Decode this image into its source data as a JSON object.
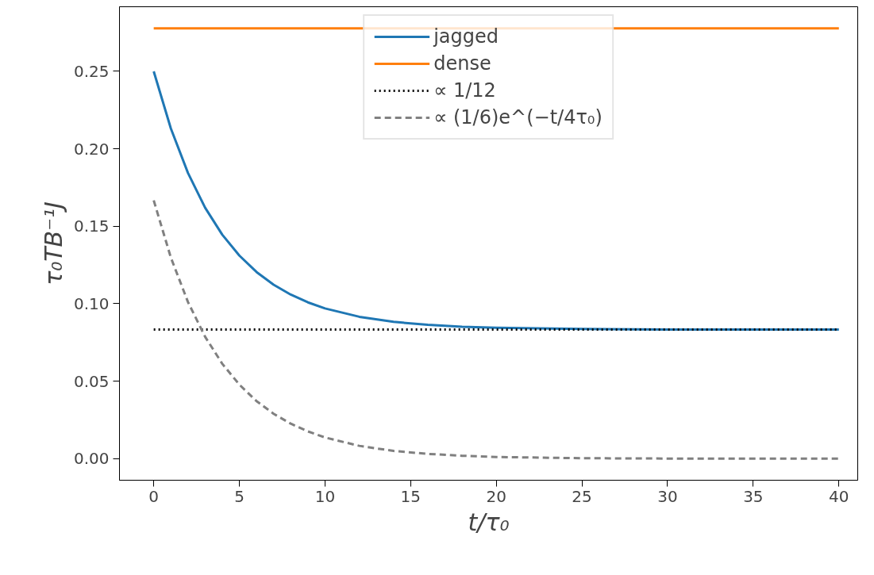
{
  "chart_data": {
    "type": "line",
    "xlabel": "t/τ₀",
    "ylabel": "τ₀TB⁻¹J",
    "xlim": [
      -2,
      41.1
    ],
    "ylim": [
      -0.0139,
      0.2917
    ],
    "xticks": [
      0,
      5,
      10,
      15,
      20,
      25,
      30,
      35,
      40
    ],
    "yticks": [
      {
        "value": 0,
        "label": "0.00"
      },
      {
        "value": 0.05,
        "label": "0.05"
      },
      {
        "value": 0.1,
        "label": "0.10"
      },
      {
        "value": 0.15,
        "label": "0.15"
      },
      {
        "value": 0.2,
        "label": "0.20"
      },
      {
        "value": 0.25,
        "label": "0.25"
      }
    ],
    "grid": false,
    "legend": "top",
    "marker": "none",
    "series": [
      {
        "name": "jagged",
        "color": "#1f77b4",
        "line_style": "solid",
        "x": [
          0,
          1,
          2,
          3,
          4,
          5,
          6,
          7,
          8,
          9,
          10,
          12,
          14,
          16,
          18,
          20,
          25,
          30,
          35,
          40
        ],
        "values": [
          0.25,
          0.2131,
          0.1844,
          0.162,
          0.1446,
          0.1311,
          0.1205,
          0.1123,
          0.1059,
          0.1009,
          0.097,
          0.0916,
          0.0883,
          0.0864,
          0.0852,
          0.0845,
          0.0837,
          0.0834,
          0.0833,
          0.0833
        ]
      },
      {
        "name": "dense",
        "color": "#ff7f0e",
        "line_style": "solid",
        "x": [
          0,
          40
        ],
        "values": [
          0.2778,
          0.2778
        ]
      },
      {
        "name": "∝ 1/12",
        "color": "#000000",
        "line_style": "dotted",
        "x": [
          0,
          40
        ],
        "values": [
          0.0833,
          0.0833
        ]
      },
      {
        "name": "∝ (1/6)e^(−t/4τ₀)",
        "color": "#808080",
        "line_style": "dashed",
        "x": [
          0,
          1,
          2,
          3,
          4,
          5,
          6,
          7,
          8,
          9,
          10,
          12,
          14,
          16,
          18,
          20,
          25,
          30,
          35,
          40
        ],
        "values": [
          0.1667,
          0.1298,
          0.1011,
          0.0787,
          0.0613,
          0.0478,
          0.0372,
          0.029,
          0.0226,
          0.0176,
          0.0137,
          0.0083,
          0.005,
          0.0031,
          0.0019,
          0.0011,
          0.0003,
          0.0001,
          0,
          0
        ]
      }
    ]
  }
}
